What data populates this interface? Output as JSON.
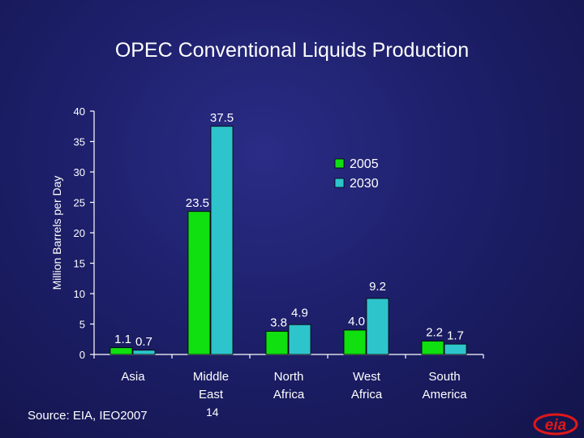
{
  "slide": {
    "title": "OPEC Conventional Liquids Production",
    "source": "Source:  EIA, IEO2007",
    "page_number": "14",
    "logo_text": "eia"
  },
  "colors": {
    "background": "#1d1f6a",
    "series_2005": "#10e010",
    "series_2030": "#2ec4cc",
    "axis": "#ffffff",
    "logo_red": "#e01818"
  },
  "chart_data": {
    "type": "bar",
    "title": "OPEC Conventional Liquids Production",
    "ylabel": "Million Barrels per Day",
    "xlabel": "",
    "ylim": [
      0,
      40
    ],
    "yticks": [
      0,
      5,
      10,
      15,
      20,
      25,
      30,
      35,
      40
    ],
    "categories": [
      [
        "Asia"
      ],
      [
        "Middle",
        "East"
      ],
      [
        "North",
        "Africa"
      ],
      [
        "West",
        "Africa"
      ],
      [
        "South",
        "America"
      ]
    ],
    "series": [
      {
        "name": "2005",
        "values": [
          1.1,
          23.5,
          3.8,
          4.0,
          2.2
        ],
        "labels": [
          "1.1",
          "23.5",
          "3.8",
          "4.0",
          "2.2"
        ],
        "color": "#10e010"
      },
      {
        "name": "2030",
        "values": [
          0.7,
          37.5,
          4.9,
          9.2,
          1.7
        ],
        "labels": [
          "0.7",
          "37.5",
          "4.9",
          "9.2",
          "1.7"
        ],
        "color": "#2ec4cc"
      }
    ],
    "legend_position": "top-right",
    "grid": false
  }
}
